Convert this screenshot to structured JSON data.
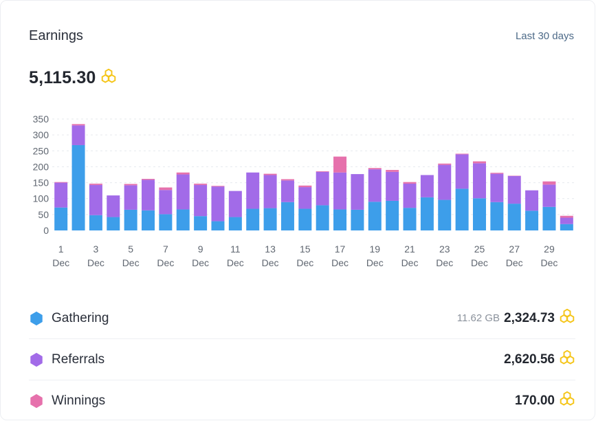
{
  "header": {
    "title": "Earnings",
    "period": "Last 30 days"
  },
  "total": {
    "value": "5,115.30",
    "icon": "honeycomb-icon"
  },
  "colors": {
    "gathering": "#3d9eea",
    "referrals": "#a26be8",
    "winnings": "#e671ac",
    "coin": "#f5c518"
  },
  "chart_data": {
    "type": "bar",
    "stacked": true,
    "categories": [
      "1 Dec",
      "2 Dec",
      "3 Dec",
      "4 Dec",
      "5 Dec",
      "6 Dec",
      "7 Dec",
      "8 Dec",
      "9 Dec",
      "10 Dec",
      "11 Dec",
      "12 Dec",
      "13 Dec",
      "14 Dec",
      "15 Dec",
      "16 Dec",
      "17 Dec",
      "18 Dec",
      "19 Dec",
      "20 Dec",
      "21 Dec",
      "22 Dec",
      "23 Dec",
      "24 Dec",
      "25 Dec",
      "26 Dec",
      "27 Dec",
      "28 Dec",
      "29 Dec",
      "30 Dec"
    ],
    "x_tick_labels": [
      {
        "day": "1",
        "month": "Dec"
      },
      {
        "day": "3",
        "month": "Dec"
      },
      {
        "day": "5",
        "month": "Dec"
      },
      {
        "day": "7",
        "month": "Dec"
      },
      {
        "day": "9",
        "month": "Dec"
      },
      {
        "day": "11",
        "month": "Dec"
      },
      {
        "day": "13",
        "month": "Dec"
      },
      {
        "day": "15",
        "month": "Dec"
      },
      {
        "day": "17",
        "month": "Dec"
      },
      {
        "day": "19",
        "month": "Dec"
      },
      {
        "day": "21",
        "month": "Dec"
      },
      {
        "day": "23",
        "month": "Dec"
      },
      {
        "day": "25",
        "month": "Dec"
      },
      {
        "day": "27",
        "month": "Dec"
      },
      {
        "day": "29",
        "month": "Dec"
      }
    ],
    "y_ticks": [
      "0",
      "50",
      "100",
      "150",
      "200",
      "250",
      "300",
      "350"
    ],
    "ylim": [
      0,
      350
    ],
    "grid": true,
    "series": [
      {
        "key": "gathering",
        "values": [
          72,
          268,
          48,
          42,
          65,
          63,
          51,
          66,
          45,
          29,
          42,
          68,
          70,
          89,
          68,
          79,
          66,
          65,
          90,
          93,
          71,
          104,
          96,
          131,
          101,
          89,
          84,
          62,
          74,
          20
        ]
      },
      {
        "key": "referrals",
        "values": [
          78,
          62,
          95,
          68,
          77,
          96,
          76,
          110,
          98,
          109,
          82,
          114,
          104,
          68,
          68,
          105,
          116,
          112,
          102,
          91,
          76,
          70,
          110,
          108,
          110,
          89,
          87,
          64,
          70,
          20
        ]
      },
      {
        "key": "winnings",
        "values": [
          2,
          4,
          4,
          0,
          4,
          3,
          8,
          6,
          4,
          2,
          0,
          0,
          4,
          4,
          5,
          2,
          50,
          0,
          4,
          6,
          5,
          0,
          4,
          2,
          6,
          3,
          1,
          0,
          10,
          6
        ]
      }
    ]
  },
  "legend": [
    {
      "key": "gathering",
      "label": "Gathering",
      "extra": "11.62 GB",
      "value": "2,324.73"
    },
    {
      "key": "referrals",
      "label": "Referrals",
      "extra": "",
      "value": "2,620.56"
    },
    {
      "key": "winnings",
      "label": "Winnings",
      "extra": "",
      "value": "170.00"
    }
  ]
}
